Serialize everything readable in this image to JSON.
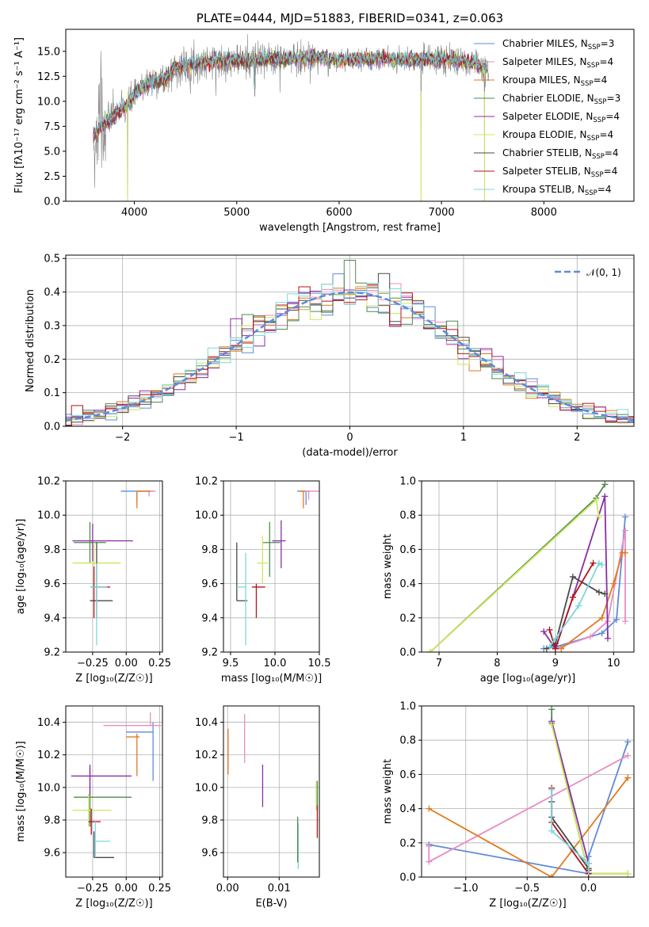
{
  "colors": {
    "s0": "#5e8bd9",
    "s1": "#e88cc4",
    "s2": "#e07a1f",
    "s3": "#4f8a4f",
    "s4": "#8a2da6",
    "s5": "#cde85c",
    "s6": "#4a4a4a",
    "s7": "#b0141e",
    "s8": "#7dd6dc",
    "spec": "#7f7f7f",
    "dash": "#5e8bd9"
  },
  "chart_data": [
    {
      "id": "spectrum",
      "type": "line",
      "title": "PLATE=0444, MJD=51883, FIBERID=0341, z=0.063",
      "xlabel": "wavelength [Angstrom, rest frame]",
      "ylabel": "Flux [fλ10⁻¹⁷ erg cm⁻² s⁻¹ A⁻¹]",
      "xlim": [
        3330,
        8880
      ],
      "ylim": [
        0,
        17.2
      ],
      "xticks": [
        4000,
        5000,
        6000,
        7000,
        8000
      ],
      "yticks": [
        "0.0",
        "2.5",
        "5.0",
        "7.5",
        "10.0",
        "12.5",
        "15.0"
      ],
      "legend_position": "right",
      "legend": [
        "Chabrier MILES, N_SSP=3",
        "Salpeter MILES, N_SSP=4",
        "Kroupa MILES, N_SSP=4",
        "Chabrier ELODIE, N_SSP=3",
        "Salpeter ELODIE, N_SSP=4",
        "Kroupa ELODIE, N_SSP=4",
        "Chabrier STELIB, N_SSP=4",
        "Salpeter STELIB, N_SSP=4",
        "Kroupa STELIB, N_SSP=4"
      ],
      "continuum": {
        "x": [
          3600,
          3700,
          3800,
          3900,
          4000,
          4100,
          4200,
          4300,
          4400,
          4600,
          4800,
          5000,
          5200,
          5400,
          5600,
          5800,
          6000,
          6200,
          6400,
          6600,
          6800,
          7000,
          7200,
          7400,
          7450
        ],
        "y": [
          6.5,
          7.8,
          8.6,
          9.3,
          10.5,
          11.6,
          12.0,
          12.2,
          13.3,
          13.7,
          14.1,
          14.0,
          14.2,
          14.2,
          14.3,
          14.4,
          14.1,
          14.2,
          14.3,
          14.2,
          14.2,
          14.2,
          14.0,
          13.5,
          13.2
        ]
      },
      "absorption_dips": [
        {
          "x": 3934,
          "y": 0.0
        },
        {
          "x": 5176,
          "y": 10.5
        },
        {
          "x": 5893,
          "y": 12.5
        },
        {
          "x": 6563,
          "y": 12.8
        },
        {
          "x": 6800,
          "y": 0.0
        },
        {
          "x": 7420,
          "y": 0.0
        }
      ]
    },
    {
      "id": "residuals",
      "type": "line",
      "xlabel": "(data-model)/error",
      "ylabel": "Normed distribution",
      "xlim": [
        -2.5,
        2.5
      ],
      "ylim": [
        0,
        0.51
      ],
      "xticks": [
        "−2",
        "−1",
        "0",
        "1",
        "2"
      ],
      "yticks": [
        "0.0",
        "0.1",
        "0.2",
        "0.3",
        "0.4",
        "0.5"
      ],
      "legend": [
        "𝒩(0, 1)"
      ],
      "legend_position": "top-right",
      "grid": true,
      "bin_width": 0.1
    },
    {
      "id": "age_vs_Z",
      "type": "scatter",
      "xlabel": "Z [log₁₀(Z/Z☉)]",
      "ylabel": "age  [log₁₀(age/yr)]",
      "xlim": [
        -0.45,
        0.27
      ],
      "ylim": [
        9.2,
        10.2
      ],
      "xticks": [
        "−0.25",
        "0.00",
        "0.25"
      ],
      "yticks": [
        "9.2",
        "9.4",
        "9.6",
        "9.8",
        "10.0",
        "10.2"
      ],
      "grid": true,
      "points": [
        {
          "s": 0,
          "x": 0.08,
          "y": 10.14,
          "xerr": [
            0.12,
            0.12
          ],
          "yerr": [
            0.06,
            0.0
          ]
        },
        {
          "s": 1,
          "x": 0.17,
          "y": 10.14,
          "xerr": [
            0.1,
            0.05
          ],
          "yerr": [
            0.03,
            0.0
          ]
        },
        {
          "s": 2,
          "x": 0.08,
          "y": 10.14,
          "xerr": [
            0.0,
            0.1
          ],
          "yerr": [
            0.1,
            0.0
          ]
        },
        {
          "s": 3,
          "x": -0.27,
          "y": 9.84,
          "xerr": [
            0.12,
            0.12
          ],
          "yerr": [
            0.12,
            0.12
          ]
        },
        {
          "s": 4,
          "x": -0.25,
          "y": 9.85,
          "xerr": [
            0.15,
            0.3
          ],
          "yerr": [
            0.12,
            0.1
          ]
        },
        {
          "s": 5,
          "x": -0.24,
          "y": 9.72,
          "xerr": [
            0.16,
            0.2
          ],
          "yerr": [
            0.14,
            0.12
          ]
        },
        {
          "s": 6,
          "x": -0.22,
          "y": 9.5,
          "xerr": [
            0.05,
            0.12
          ],
          "yerr": [
            0.1,
            0.34
          ]
        },
        {
          "s": 7,
          "x": -0.24,
          "y": 9.58,
          "xerr": [
            0.02,
            0.12
          ],
          "yerr": [
            0.18,
            0.12
          ]
        },
        {
          "s": 8,
          "x": -0.22,
          "y": 9.58,
          "xerr": [
            0.05,
            0.08
          ],
          "yerr": [
            0.34,
            0.14
          ]
        }
      ]
    },
    {
      "id": "age_vs_mass",
      "type": "scatter",
      "xlabel": "mass [log₁₀(M/M☉)]",
      "ylabel": "",
      "xlim": [
        9.42,
        10.5
      ],
      "ylim": [
        9.2,
        10.2
      ],
      "xticks": [
        "9.5",
        "10.0",
        "10.5"
      ],
      "yticks": [
        "9.2",
        "9.4",
        "9.6",
        "9.8",
        "10.0",
        "10.2"
      ],
      "grid": true,
      "points": [
        {
          "s": 0,
          "x": 10.35,
          "y": 10.14,
          "xerr": [
            0.1,
            0.05
          ],
          "yerr": [
            0.08,
            0.0
          ]
        },
        {
          "s": 1,
          "x": 10.38,
          "y": 10.14,
          "xerr": [
            0.1,
            0.15
          ],
          "yerr": [
            0.05,
            0.0
          ]
        },
        {
          "s": 2,
          "x": 10.32,
          "y": 10.14,
          "xerr": [
            0.05,
            0.02
          ],
          "yerr": [
            0.1,
            0.0
          ]
        },
        {
          "s": 3,
          "x": 9.94,
          "y": 9.84,
          "xerr": [
            0.08,
            0.12
          ],
          "yerr": [
            0.2,
            0.12
          ]
        },
        {
          "s": 4,
          "x": 10.07,
          "y": 9.85,
          "xerr": [
            0.1,
            0.05
          ],
          "yerr": [
            0.16,
            0.12
          ]
        },
        {
          "s": 5,
          "x": 9.86,
          "y": 9.72,
          "xerr": [
            0.06,
            0.06
          ],
          "yerr": [
            0.12,
            0.16
          ]
        },
        {
          "s": 6,
          "x": 9.57,
          "y": 9.5,
          "xerr": [
            0.0,
            0.12
          ],
          "yerr": [
            0.0,
            0.34
          ]
        },
        {
          "s": 7,
          "x": 9.79,
          "y": 9.58,
          "xerr": [
            0.05,
            0.1
          ],
          "yerr": [
            0.18,
            0.02
          ]
        },
        {
          "s": 8,
          "x": 9.67,
          "y": 9.58,
          "xerr": [
            0.1,
            0.0
          ],
          "yerr": [
            0.34,
            0.2
          ]
        }
      ]
    },
    {
      "id": "massweight_vs_age",
      "type": "line",
      "xlabel": "age  [log₁₀(age/yr)]",
      "ylabel": "mass weight",
      "xlim": [
        6.7,
        10.35
      ],
      "ylim": [
        0,
        1.0
      ],
      "xticks": [
        "7",
        "8",
        "9",
        "10"
      ],
      "yticks": [
        "0.0",
        "0.2",
        "0.4",
        "0.6",
        "0.8",
        "1.0"
      ],
      "grid": true,
      "series": [
        {
          "s": 0,
          "x": [
            8.8,
            9.0,
            9.8,
            10.05,
            10.2
          ],
          "y": [
            0.02,
            0.03,
            0.11,
            0.19,
            0.79
          ]
        },
        {
          "s": 1,
          "x": [
            9.0,
            9.6,
            9.9,
            10.2,
            10.2
          ],
          "y": [
            0.02,
            0.09,
            0.18,
            0.71,
            0.18
          ]
        },
        {
          "s": 2,
          "x": [
            9.1,
            9.8,
            10.0,
            10.15,
            10.2
          ],
          "y": [
            0.02,
            0.2,
            0.4,
            0.58,
            0.58
          ]
        },
        {
          "s": 3,
          "x": [
            6.85,
            9.7,
            9.85
          ],
          "y": [
            0.0,
            0.9,
            0.98
          ]
        },
        {
          "s": 4,
          "x": [
            8.8,
            9.0,
            9.3,
            9.85,
            9.9
          ],
          "y": [
            0.12,
            0.02,
            0.32,
            0.91,
            0.08
          ]
        },
        {
          "s": 5,
          "x": [
            6.85,
            9.7,
            9.75
          ],
          "y": [
            0.0,
            0.89,
            0.79
          ]
        },
        {
          "s": 6,
          "x": [
            8.85,
            9.0,
            9.3,
            9.75,
            9.85
          ],
          "y": [
            0.02,
            0.05,
            0.44,
            0.35,
            0.34
          ]
        },
        {
          "s": 7,
          "x": [
            8.9,
            9.0,
            9.3,
            9.65
          ],
          "y": [
            0.13,
            0.02,
            0.32,
            0.52
          ]
        },
        {
          "s": 8,
          "x": [
            8.9,
            9.0,
            9.4,
            9.75,
            9.8
          ],
          "y": [
            0.03,
            0.08,
            0.27,
            0.52,
            0.51
          ]
        }
      ]
    },
    {
      "id": "mass_vs_Z",
      "type": "scatter",
      "xlabel": "Z [log₁₀(Z/Z☉)]",
      "ylabel": "mass [log₁₀(M/M☉)]",
      "xlim": [
        -0.45,
        0.27
      ],
      "ylim": [
        9.45,
        10.5
      ],
      "xticks": [
        "−0.25",
        "0.00",
        "0.25"
      ],
      "yticks": [
        "9.6",
        "9.8",
        "10.0",
        "10.2",
        "10.4"
      ],
      "grid": true,
      "points": [
        {
          "s": 0,
          "x": 0.2,
          "y": 10.34,
          "xerr": [
            0.2,
            0.0
          ],
          "yerr": [
            0.3,
            0.06
          ]
        },
        {
          "s": 1,
          "x": 0.18,
          "y": 10.38,
          "xerr": [
            0.35,
            0.08
          ],
          "yerr": [
            0.0,
            0.08
          ]
        },
        {
          "s": 2,
          "x": 0.08,
          "y": 10.31,
          "xerr": [
            0.08,
            0.02
          ],
          "yerr": [
            0.24,
            0.02
          ]
        },
        {
          "s": 3,
          "x": -0.27,
          "y": 9.94,
          "xerr": [
            0.12,
            0.31
          ],
          "yerr": [
            0.18,
            0.18
          ]
        },
        {
          "s": 4,
          "x": -0.27,
          "y": 10.07,
          "xerr": [
            0.14,
            0.31
          ],
          "yerr": [
            0.12,
            0.07
          ]
        },
        {
          "s": 5,
          "x": -0.28,
          "y": 9.86,
          "xerr": [
            0.12,
            0.17
          ],
          "yerr": [
            0.1,
            0.1
          ]
        },
        {
          "s": 6,
          "x": -0.24,
          "y": 9.57,
          "xerr": [
            0.0,
            0.15
          ],
          "yerr": [
            0.0,
            0.16
          ]
        },
        {
          "s": 7,
          "x": -0.26,
          "y": 9.79,
          "xerr": [
            0.02,
            0.07
          ],
          "yerr": [
            0.08,
            0.08
          ]
        },
        {
          "s": 8,
          "x": -0.23,
          "y": 9.67,
          "xerr": [
            0.0,
            0.11
          ],
          "yerr": [
            0.1,
            0.12
          ]
        }
      ]
    },
    {
      "id": "mass_vs_ebv",
      "type": "scatter",
      "xlabel": "E(B-V)",
      "ylabel": "",
      "xlim": [
        -0.0008,
        0.0178
      ],
      "ylim": [
        9.45,
        10.5
      ],
      "xticks": [
        "0.00",
        "0.01"
      ],
      "yticks": [
        "9.6",
        "9.8",
        "10.0",
        "10.2",
        "10.4"
      ],
      "grid": true,
      "points": [
        {
          "s": 2,
          "x": 0.0001,
          "y": 10.22,
          "yerr": [
            0.14,
            0.14
          ]
        },
        {
          "s": 1,
          "x": 0.0033,
          "y": 10.3,
          "yerr": [
            0.15,
            0.15
          ]
        },
        {
          "s": 4,
          "x": 0.0068,
          "y": 10.01,
          "yerr": [
            0.13,
            0.13
          ]
        },
        {
          "s": 8,
          "x": 0.0137,
          "y": 9.64,
          "yerr": [
            0.14,
            0.14
          ]
        },
        {
          "s": 3,
          "x": 0.0136,
          "y": 9.68,
          "yerr": [
            0.14,
            0.14
          ]
        },
        {
          "s": 5,
          "x": 0.0172,
          "y": 9.95,
          "yerr": [
            0.09,
            0.09
          ]
        },
        {
          "s": 3,
          "x": 0.0174,
          "y": 9.95,
          "yerr": [
            0.09,
            0.09
          ]
        },
        {
          "s": 7,
          "x": 0.0174,
          "y": 9.79,
          "yerr": [
            0.1,
            0.1
          ]
        }
      ]
    },
    {
      "id": "massweight_vs_Z",
      "type": "line",
      "xlabel": "Z [log₁₀(Z/Z☉)]",
      "ylabel": "mass weight",
      "xlim": [
        -1.36,
        0.37
      ],
      "ylim": [
        0,
        1.0
      ],
      "xticks": [
        "−1.0",
        "−0.5",
        "0.0"
      ],
      "yticks": [
        "0.0",
        "0.2",
        "0.4",
        "0.6",
        "0.8",
        "1.0"
      ],
      "grid": true,
      "series": [
        {
          "s": 0,
          "x": [
            -1.3,
            0.0,
            0.0,
            0.32
          ],
          "y": [
            0.19,
            0.02,
            0.12,
            0.79
          ]
        },
        {
          "s": 1,
          "x": [
            -1.3,
            -1.3,
            0.32
          ],
          "y": [
            0.18,
            0.09,
            0.71
          ]
        },
        {
          "s": 2,
          "x": [
            -1.3,
            -0.3,
            0.32,
            0.32
          ],
          "y": [
            0.4,
            0.0,
            0.58,
            0.58
          ]
        },
        {
          "s": 3,
          "x": [
            -0.3,
            -0.3,
            0.0,
            0.32
          ],
          "y": [
            0.98,
            0.9,
            0.02,
            0.02
          ]
        },
        {
          "s": 4,
          "x": [
            -0.3,
            0.0,
            0.0
          ],
          "y": [
            0.91,
            0.08,
            0.02
          ]
        },
        {
          "s": 5,
          "x": [
            -0.3,
            0.0,
            0.32
          ],
          "y": [
            0.89,
            0.02,
            0.02
          ]
        },
        {
          "s": 6,
          "x": [
            -0.3,
            -0.3,
            0.0
          ],
          "y": [
            0.44,
            0.35,
            0.05
          ]
        },
        {
          "s": 7,
          "x": [
            -0.3,
            -0.3,
            0.0,
            0.0
          ],
          "y": [
            0.52,
            0.32,
            0.02,
            0.04
          ]
        },
        {
          "s": 8,
          "x": [
            -0.3,
            -0.3,
            0.0,
            0.0
          ],
          "y": [
            0.51,
            0.27,
            0.08,
            0.03
          ]
        }
      ]
    }
  ]
}
